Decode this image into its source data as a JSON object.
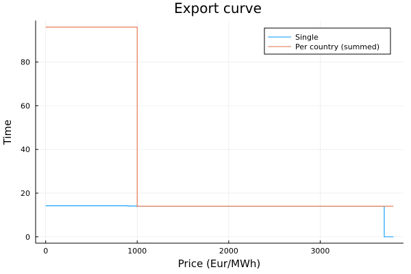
{
  "chart_data": {
    "type": "line",
    "title": "Export curve",
    "xlabel": "Price (Eur/MWh)",
    "ylabel": "Time",
    "xlim": [
      -110,
      3910
    ],
    "ylim": [
      -2.9,
      99.0
    ],
    "xticks": [
      0,
      1000,
      2000,
      3000
    ],
    "xtick_labels": [
      "0",
      "1000",
      "2000",
      "3000"
    ],
    "yticks": [
      0,
      20,
      40,
      60,
      80
    ],
    "ytick_labels": [
      "0",
      "20",
      "40",
      "60",
      "80"
    ],
    "grid": true,
    "legend_position": "top-right",
    "series": [
      {
        "name": "Single",
        "color": "#009AFA",
        "step": "post",
        "x": [
          0,
          900,
          1000,
          3700,
          3700,
          3800
        ],
        "y": [
          14.2,
          14.1,
          14.0,
          14.0,
          0,
          0
        ]
      },
      {
        "name": "Per country (summed)",
        "color": "#E36F47",
        "step": "post",
        "x": [
          0,
          1000,
          1000,
          3800
        ],
        "y": [
          96,
          96,
          14.0,
          14.0
        ]
      }
    ]
  }
}
